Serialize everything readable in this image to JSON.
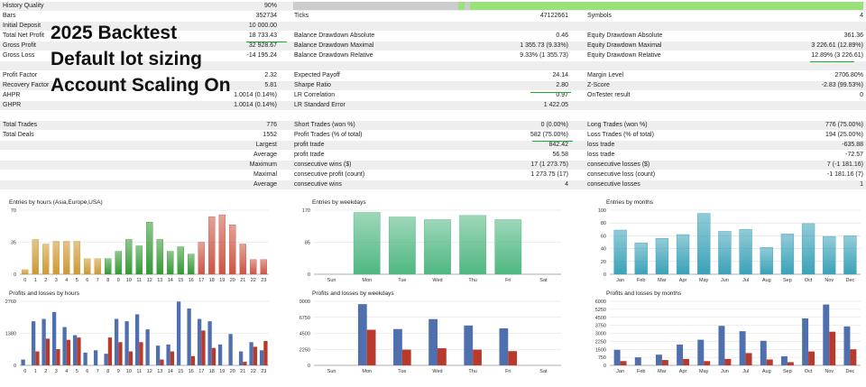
{
  "summary_rows": [
    {
      "c1l": "History Quality",
      "c1v": "90%",
      "c2l": "",
      "c2v": "",
      "c3l": "",
      "c3v": ""
    },
    {
      "c1l": "Bars",
      "c1v": "352734",
      "c2l": "Ticks",
      "c2v": "47122661",
      "c3l": "Symbols",
      "c3v": "4"
    },
    {
      "c1l": "Initial Deposit",
      "c1v": "10 000.00",
      "c2l": "",
      "c2v": "",
      "c3l": "",
      "c3v": ""
    },
    {
      "c1l": "Total Net Profit",
      "c1v": "18 733.43",
      "c2l": "Balance Drawdown Absolute",
      "c2v": "0.46",
      "c3l": "Equity Drawdown Absolute",
      "c3v": "361.36"
    },
    {
      "c1l": "Gross Profit",
      "c1v": "32 928.67",
      "c2l": "Balance Drawdown Maximal",
      "c2v": "1 355.73 (9.33%)",
      "c3l": "Equity Drawdown Maximal",
      "c3v": "3 226.61 (12.89%)"
    },
    {
      "c1l": "Gross Loss",
      "c1v": "-14 195.24",
      "c2l": "Balance Drawdown Relative",
      "c2v": "9.33% (1 355.73)",
      "c3l": "Equity Drawdown Relative",
      "c3v": "12.89% (3 226.61)"
    },
    {
      "c1l": "",
      "c1v": "",
      "c2l": "",
      "c2v": "",
      "c3l": "",
      "c3v": ""
    },
    {
      "c1l": "Profit Factor",
      "c1v": "2.32",
      "c2l": "Expected Payoff",
      "c2v": "24.14",
      "c3l": "Margin Level",
      "c3v": "2706.80%"
    },
    {
      "c1l": "Recovery Factor",
      "c1v": "5.81",
      "c2l": "Sharpe Ratio",
      "c2v": "2.80",
      "c3l": "Z-Score",
      "c3v": "-2.83 (99.53%)"
    },
    {
      "c1l": "AHPR",
      "c1v": "1.0014 (0.14%)",
      "c2l": "LR Correlation",
      "c2v": "0.97",
      "c3l": "OnTester result",
      "c3v": "0"
    },
    {
      "c1l": "GHPR",
      "c1v": "1.0014 (0.14%)",
      "c2l": "LR Standard Error",
      "c2v": "1 422.05",
      "c3l": "",
      "c3v": ""
    },
    {
      "c1l": "",
      "c1v": "",
      "c2l": "",
      "c2v": "",
      "c3l": "",
      "c3v": ""
    },
    {
      "c1l": "Total Trades",
      "c1v": "776",
      "c2l": "Short Trades (won %)",
      "c2v": "0 (0.00%)",
      "c3l": "Long Trades (won %)",
      "c3v": "776 (75.00%)"
    },
    {
      "c1l": "Total Deals",
      "c1v": "1552",
      "c2l": "Profit Trades (% of total)",
      "c2v": "582 (75.00%)",
      "c3l": "Loss Trades (% of total)",
      "c3v": "194 (25.00%)"
    },
    {
      "c1l": "",
      "c1v": "Largest",
      "c2l": "profit trade",
      "c2v": "842.42",
      "c3l": "loss trade",
      "c3v": "-635.88"
    },
    {
      "c1l": "",
      "c1v": "Average",
      "c2l": "profit trade",
      "c2v": "56.58",
      "c3l": "loss trade",
      "c3v": "-72.57"
    },
    {
      "c1l": "",
      "c1v": "Maximum",
      "c2l": "consecutive wins ($)",
      "c2v": "17 (1 273.75)",
      "c3l": "consecutive losses ($)",
      "c3v": "7 (-1 181.16)"
    },
    {
      "c1l": "",
      "c1v": "Maximal",
      "c2l": "consecutive profit (count)",
      "c2v": "1 273.75 (17)",
      "c3l": "consecutive loss (count)",
      "c3v": "-1 181.16 (7)"
    },
    {
      "c1l": "",
      "c1v": "Average",
      "c2l": "consecutive wins",
      "c2v": "4",
      "c3l": "consecutive losses",
      "c3v": "1"
    }
  ],
  "overlay": {
    "line1": "2025 Backtest",
    "line2": "Default lot sizing",
    "line3": "Account Scaling On"
  },
  "quality_bar": {
    "fill": 0.9,
    "colors": {
      "light": "#cccccc",
      "green": "#99e27a",
      "track": "#d8d8d8"
    }
  },
  "charts": {
    "entries_hours": {
      "title": "Entries by hours (Asia,Europe,USA)",
      "ymax": 70,
      "yticks": [
        "70",
        "35",
        "0"
      ],
      "categories": [
        "0",
        "1",
        "2",
        "3",
        "4",
        "5",
        "6",
        "7",
        "8",
        "9",
        "10",
        "11",
        "12",
        "13",
        "14",
        "15",
        "16",
        "17",
        "18",
        "19",
        "20",
        "21",
        "22",
        "23"
      ],
      "values": [
        5,
        38,
        33,
        36,
        36,
        36,
        17,
        17,
        17,
        25,
        38,
        31,
        57,
        38,
        25,
        30,
        22,
        35,
        63,
        65,
        54,
        33,
        16,
        16
      ],
      "colors": [
        "#cc9933",
        "#cc9933",
        "#cc9933",
        "#cc9933",
        "#cc9933",
        "#cc9933",
        "#cc9933",
        "#cc9933",
        "#339933",
        "#339933",
        "#339933",
        "#339933",
        "#339933",
        "#339933",
        "#339933",
        "#339933",
        "#339933",
        "#cc5544",
        "#cc5544",
        "#cc5544",
        "#cc5544",
        "#cc5544",
        "#cc5544",
        "#cc5544"
      ]
    },
    "entries_weekdays": {
      "title": "Entries by weekdays",
      "ymax": 170,
      "yticks": [
        "170",
        "85",
        "0"
      ],
      "categories": [
        "Sun",
        "Mon",
        "Tue",
        "Wed",
        "Thu",
        "Fri",
        "Sat"
      ],
      "values": [
        0,
        164,
        152,
        145,
        156,
        145,
        0
      ]
    },
    "entries_months": {
      "title": "Entries by months",
      "ymax": 100,
      "yticks": [
        "100",
        "80",
        "60",
        "40",
        "20",
        "0"
      ],
      "categories": [
        "Jan",
        "Feb",
        "Mar",
        "Apr",
        "May",
        "Jun",
        "Jul",
        "Aug",
        "Sep",
        "Oct",
        "Nov",
        "Dec"
      ],
      "values": [
        69,
        49,
        56,
        62,
        95,
        67,
        70,
        42,
        63,
        79,
        59,
        60
      ]
    },
    "pl_hours": {
      "title": "Profits and losses by hours",
      "ymax": 2760,
      "yticks": [
        "2760",
        "1380",
        "0"
      ],
      "categories": [
        "0",
        "1",
        "2",
        "3",
        "4",
        "5",
        "6",
        "7",
        "8",
        "9",
        "10",
        "11",
        "12",
        "13",
        "14",
        "15",
        "16",
        "17",
        "18",
        "19",
        "20",
        "21",
        "22",
        "23"
      ],
      "profits": [
        250,
        1900,
        2000,
        2300,
        1650,
        1300,
        550,
        650,
        500,
        2000,
        1900,
        2200,
        1550,
        850,
        900,
        2750,
        2450,
        2000,
        1900,
        900,
        1350,
        600,
        1000,
        650
      ],
      "losses": [
        0,
        600,
        1150,
        700,
        1100,
        1200,
        0,
        0,
        1200,
        1000,
        600,
        1000,
        0,
        250,
        600,
        0,
        400,
        1500,
        750,
        0,
        0,
        150,
        800,
        1050
      ]
    },
    "pl_weekdays": {
      "title": "Profits and losses by weekdays",
      "ymax": 9000,
      "yticks": [
        "9000",
        "6750",
        "4500",
        "2250",
        "0"
      ],
      "categories": [
        "Sun",
        "Mon",
        "Tue",
        "Wed",
        "Thu",
        "Fri",
        "Sat"
      ],
      "profits": [
        0,
        8600,
        5100,
        6500,
        5600,
        5200,
        0
      ],
      "losses": [
        0,
        5000,
        2200,
        2400,
        2200,
        2000,
        0
      ]
    },
    "pl_months": {
      "title": "Profits and losses by months",
      "ymax": 6000,
      "yticks": [
        "6000",
        "5250",
        "4500",
        "3750",
        "3000",
        "2250",
        "1500",
        "750",
        "0"
      ],
      "categories": [
        "Jan",
        "Feb",
        "Mar",
        "Apr",
        "May",
        "Jun",
        "Jul",
        "Aug",
        "Sep",
        "Oct",
        "Nov",
        "Dec"
      ],
      "profits": [
        1450,
        750,
        1000,
        1950,
        2400,
        3700,
        3200,
        2300,
        850,
        4400,
        5700,
        3650
      ],
      "losses": [
        400,
        0,
        500,
        600,
        400,
        600,
        1150,
        550,
        300,
        1300,
        3150,
        1500
      ]
    }
  },
  "colors": {
    "profit_fill": "#4f6fae",
    "loss_fill": "#b93a2a",
    "weekday_green": "#4fb780",
    "month_teal": "#3aa2b8"
  }
}
